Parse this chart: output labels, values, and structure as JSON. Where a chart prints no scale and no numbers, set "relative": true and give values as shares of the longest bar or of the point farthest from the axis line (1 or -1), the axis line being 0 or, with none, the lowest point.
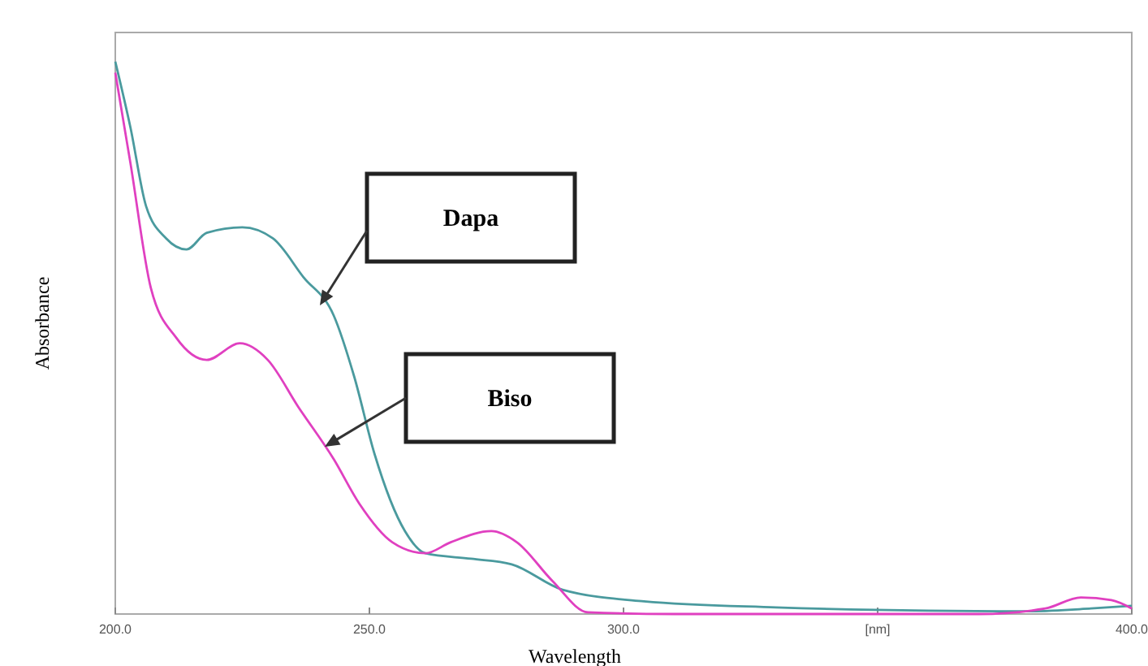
{
  "chart_data": {
    "type": "line",
    "relative": true,
    "xlabel": "Wavelength",
    "ylabel": "Absorbance",
    "xlim": [
      200,
      400
    ],
    "xticks": [
      {
        "value": 200,
        "label": "200.0"
      },
      {
        "value": 250,
        "label": "250.0"
      },
      {
        "value": 300,
        "label": "300.0"
      },
      {
        "value": 350,
        "label": "[nm]"
      },
      {
        "value": 400,
        "label": "400.0"
      }
    ],
    "marker": "none",
    "line_style": "solid",
    "series": [
      {
        "color": "#4a9a9e",
        "x": [
          200,
          203,
          206,
          210,
          214,
          218,
          225,
          231,
          237,
          243,
          247,
          251,
          257,
          261,
          270,
          278,
          288,
          304,
          330,
          360,
          380,
          392,
          400
        ],
        "values": [
          1.0,
          0.88,
          0.74,
          0.68,
          0.66,
          0.69,
          0.7,
          0.68,
          0.61,
          0.54,
          0.43,
          0.29,
          0.15,
          0.11,
          0.1,
          0.09,
          0.044,
          0.023,
          0.012,
          0.006,
          0.005,
          0.01,
          0.015
        ]
      },
      {
        "color": "#e040c0",
        "x": [
          200,
          203,
          207,
          212,
          218,
          224.5,
          230,
          236,
          243,
          248,
          254.5,
          261,
          266,
          274,
          279,
          286,
          293,
          310,
          340,
          370,
          383,
          390,
          396,
          400
        ],
        "values": [
          0.98,
          0.815,
          0.59,
          0.5,
          0.46,
          0.49,
          0.46,
          0.375,
          0.28,
          0.2,
          0.13,
          0.11,
          0.13,
          0.15,
          0.13,
          0.06,
          0.003,
          0.0,
          0.0,
          0.0,
          0.01,
          0.03,
          0.025,
          0.01
        ]
      }
    ],
    "annotations": [
      "Dapa",
      "Biso"
    ]
  }
}
